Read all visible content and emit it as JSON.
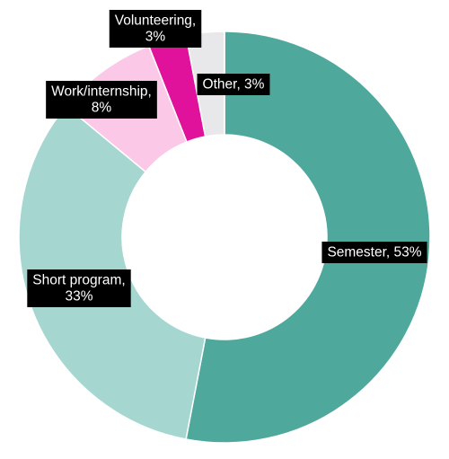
{
  "chart_data": {
    "type": "pie",
    "variant": "donut",
    "categories": [
      "Semester",
      "Short program",
      "Work/internship",
      "Volunteering",
      "Other"
    ],
    "values": [
      53,
      33,
      8,
      3,
      3
    ],
    "unit": "%",
    "labels": [
      [
        "Semester, 53%"
      ],
      [
        "Short program,",
        "33%"
      ],
      [
        "Work/internship,",
        "8%"
      ],
      [
        "Volunteering,",
        "3%"
      ],
      [
        "Other, 3%"
      ]
    ],
    "colors": [
      "#4fa89c",
      "#a5d6d0",
      "#fcc8e8",
      "#e0119b",
      "#e8e8ea"
    ],
    "label_style": {
      "background": "#000000",
      "text": "#ffffff"
    },
    "start_angle": "12 o'clock",
    "direction": "clockwise",
    "legend": "none"
  }
}
